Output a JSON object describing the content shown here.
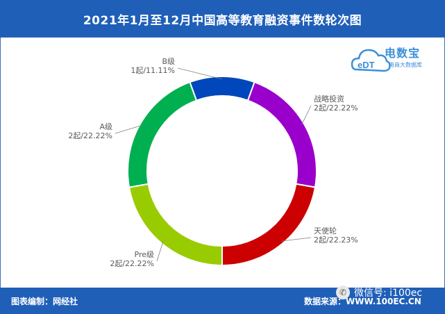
{
  "header": {
    "title": "2021年1月至12月中国高等教育融资事件数轮次图"
  },
  "logo": {
    "name": "电数宝",
    "badge": "eDT",
    "subtitle": "电商大数据库"
  },
  "footer": {
    "left": "图表编制：网经社",
    "right": "数据来源：WWW.100EC.CN"
  },
  "watermark": {
    "text": "微信号: i100ec",
    "icon": "wechat-icon"
  },
  "chart_data": {
    "type": "pie",
    "donut": true,
    "slices": [
      {
        "name": "战略投资",
        "label": "2起/22.22%",
        "value": 2,
        "percent": 22.22,
        "color": "#9900cc"
      },
      {
        "name": "天使轮",
        "label": "2起/22.23%",
        "value": 2,
        "percent": 22.23,
        "color": "#cc0000"
      },
      {
        "name": "Pre级",
        "label": "2起/22.22%",
        "value": 2,
        "percent": 22.22,
        "color": "#99cc00"
      },
      {
        "name": "A级",
        "label": "2起/22.22%",
        "value": 2,
        "percent": 22.22,
        "color": "#00b050"
      },
      {
        "name": "B级",
        "label": "1起/11.11%",
        "value": 1,
        "percent": 11.11,
        "color": "#0047bb"
      }
    ]
  }
}
